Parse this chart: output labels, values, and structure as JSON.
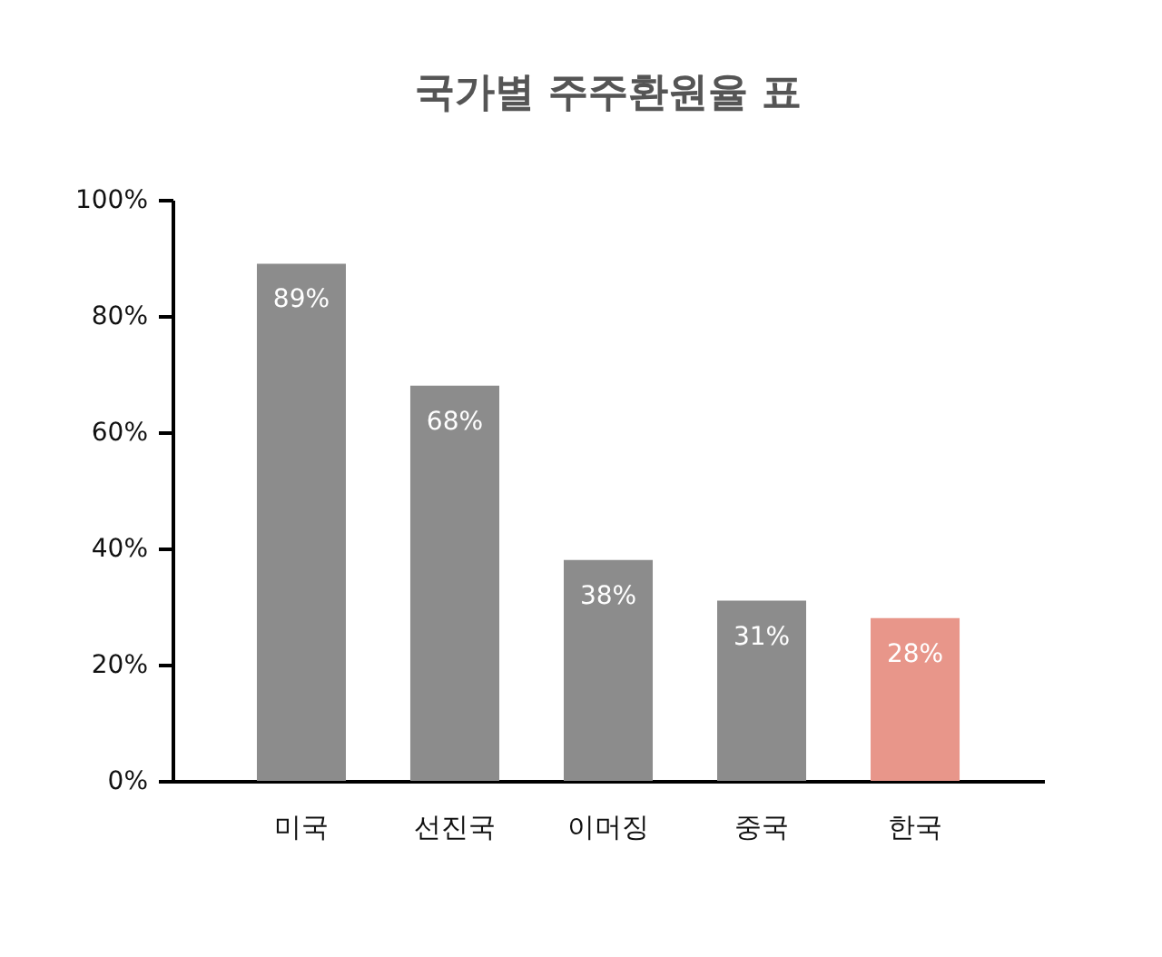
{
  "chart_data": {
    "type": "bar",
    "title": "국가별 주주환원율 표",
    "categories": [
      "미국",
      "선진국",
      "이머징",
      "중국",
      "한국"
    ],
    "values": [
      89,
      68,
      38,
      31,
      28
    ],
    "value_labels": [
      "89%",
      "68%",
      "38%",
      "31%",
      "28%"
    ],
    "colors": [
      "#8c8c8c",
      "#8c8c8c",
      "#8c8c8c",
      "#8c8c8c",
      "#e8968a"
    ],
    "ylim": [
      0,
      100
    ],
    "yticks": [
      {
        "value": 0,
        "label": "0%"
      },
      {
        "value": 20,
        "label": "20%"
      },
      {
        "value": 40,
        "label": "40%"
      },
      {
        "value": 60,
        "label": "60%"
      },
      {
        "value": 80,
        "label": "80%"
      },
      {
        "value": 100,
        "label": "100%"
      }
    ],
    "grid": false
  }
}
